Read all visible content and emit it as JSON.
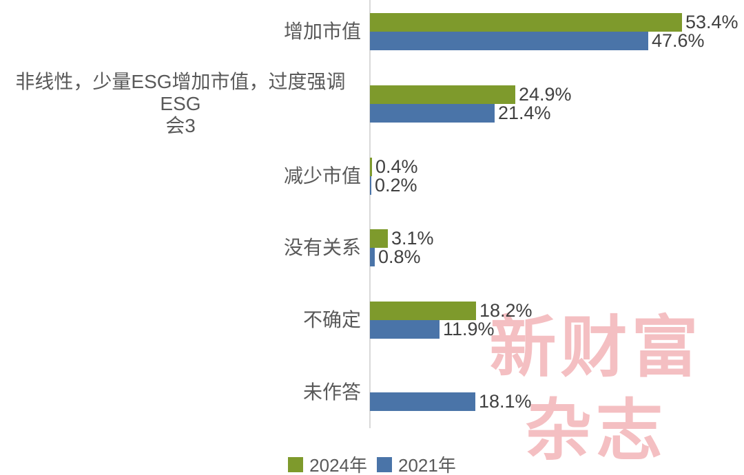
{
  "chart_data": {
    "type": "bar",
    "orientation": "horizontal",
    "title": "",
    "categories": [
      "增加市值",
      "非线性，少量ESG增加市值，过度强调ESG\n会3",
      "减少市值",
      "没有关系",
      "不确定",
      "未作答"
    ],
    "series": [
      {
        "name": "2024年",
        "color": "#7e9a2c",
        "values": [
          53.4,
          24.9,
          0.4,
          3.1,
          18.2,
          null
        ]
      },
      {
        "name": "2021年",
        "color": "#4a74a8",
        "values": [
          47.6,
          21.4,
          0.2,
          0.8,
          11.9,
          18.1
        ]
      }
    ],
    "value_suffix": "%",
    "xlim": [
      0,
      64
    ],
    "grid": false,
    "legend_position": "bottom",
    "axis_line_color": "#d9d9d9",
    "category_label_color": "#595959",
    "value_label_color": "#404040"
  },
  "watermark": {
    "line1": "新财富",
    "line2": "杂志",
    "color": "#f4bfc2"
  }
}
